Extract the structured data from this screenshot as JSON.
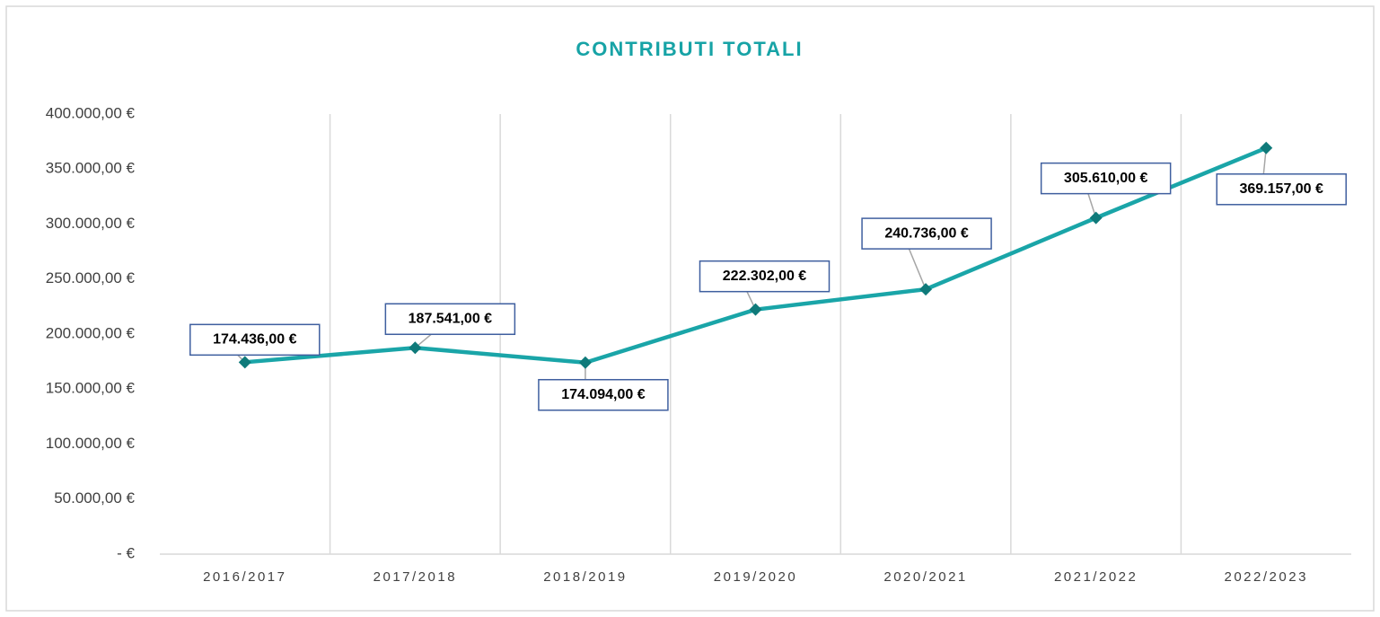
{
  "chart_data": {
    "type": "line",
    "title": "CONTRIBUTI TOTALI",
    "categories": [
      "2016/2017",
      "2017/2018",
      "2018/2019",
      "2019/2020",
      "2020/2021",
      "2021/2022",
      "2022/2023"
    ],
    "series": [
      {
        "name": "Contributi totali",
        "color": "#1aa5a8",
        "marker_color": "#0f7a7a",
        "values": [
          174436,
          187541,
          174094,
          222302,
          240736,
          305610,
          369157
        ],
        "value_labels": [
          "174.436,00 €",
          "187.541,00 €",
          "174.094,00 €",
          "222.302,00 €",
          "240.736,00 €",
          "305.610,00 €",
          "369.157,00 €"
        ]
      }
    ],
    "ylim": [
      0,
      400000
    ],
    "yticks": [
      {
        "value": 0,
        "label": "-   €"
      },
      {
        "value": 50000,
        "label": "50.000,00 €"
      },
      {
        "value": 100000,
        "label": "100.000,00 €"
      },
      {
        "value": 150000,
        "label": "150.000,00 €"
      },
      {
        "value": 200000,
        "label": "200.000,00 €"
      },
      {
        "value": 250000,
        "label": "250.000,00 €"
      },
      {
        "value": 300000,
        "label": "300.000,00 €"
      },
      {
        "value": 350000,
        "label": "350.000,00 €"
      },
      {
        "value": 400000,
        "label": "400.000,00 €"
      }
    ],
    "grid": "vertical"
  }
}
